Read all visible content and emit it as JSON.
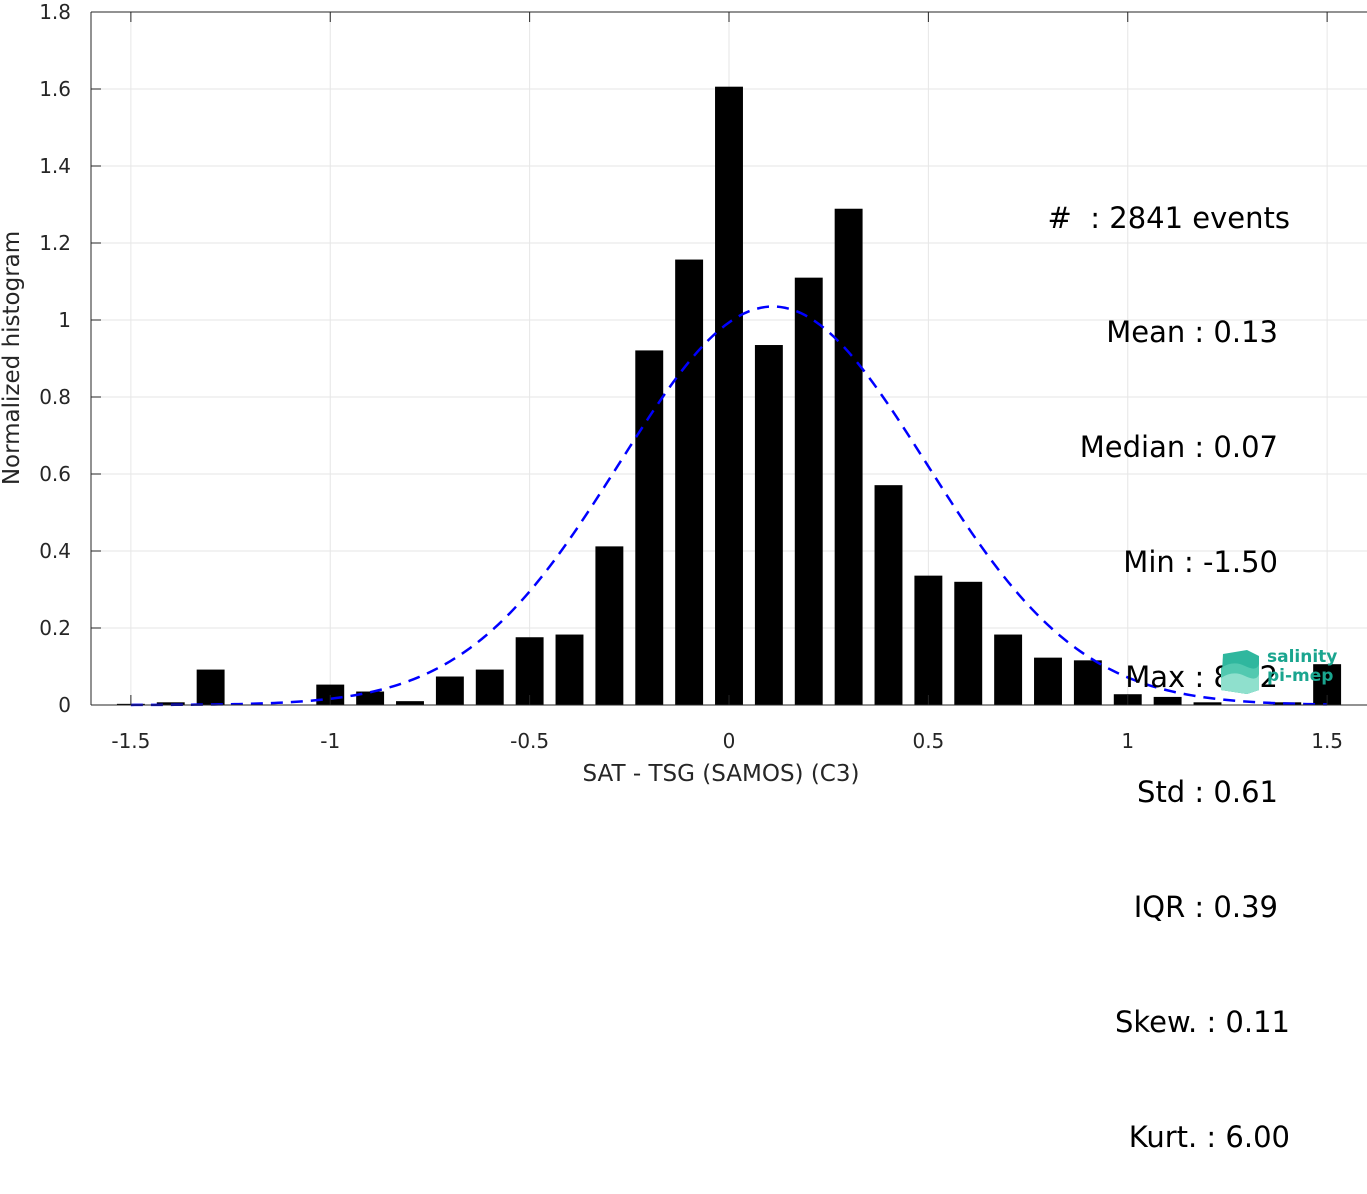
{
  "chart_data": {
    "type": "bar",
    "xlabel": "SAT - TSG (SAMOS) (C3)",
    "ylabel": "Normalized histogram",
    "xlim": [
      -1.6,
      1.6
    ],
    "ylim": [
      0,
      1.8
    ],
    "xticks": [
      -1.5,
      -1,
      -0.5,
      0,
      0.5,
      1,
      1.5
    ],
    "xtick_labels": [
      "-1.5",
      "-1",
      "-0.5",
      "0",
      "0.5",
      "1",
      "1.5"
    ],
    "yticks": [
      0,
      0.2,
      0.4,
      0.6,
      0.8,
      1,
      1.2,
      1.4,
      1.6,
      1.8
    ],
    "ytick_labels": [
      "0",
      "0.2",
      "0.4",
      "0.6",
      "0.8",
      "1",
      "1.2",
      "1.4",
      "1.6",
      "1.8"
    ],
    "grid": true,
    "bar_width": 0.07,
    "bar_color": "#000000",
    "x": [
      -1.5,
      -1.4,
      -1.3,
      -1.2,
      -1.1,
      -1.0,
      -0.9,
      -0.8,
      -0.7,
      -0.6,
      -0.5,
      -0.4,
      -0.3,
      -0.2,
      -0.1,
      0.0,
      0.1,
      0.2,
      0.3,
      0.4,
      0.5,
      0.6,
      0.7,
      0.8,
      0.9,
      1.0,
      1.1,
      1.2,
      1.3,
      1.4,
      1.5
    ],
    "values": [
      0.003,
      0.007,
      0.092,
      0.0,
      0.0,
      0.053,
      0.035,
      0.01,
      0.074,
      0.092,
      0.176,
      0.183,
      0.412,
      0.921,
      1.157,
      1.606,
      0.935,
      1.11,
      1.289,
      0.571,
      0.336,
      0.32,
      0.183,
      0.123,
      0.116,
      0.028,
      0.021,
      0.007,
      0.0,
      0.007,
      0.106
    ],
    "fit_curve": {
      "type": "gaussian",
      "mean": 0.11,
      "std": 0.385,
      "peak": 1.035,
      "color": "#0000ff",
      "style": "dashed"
    }
  },
  "stats": {
    "events": "#  : 2841 events",
    "mean": "Mean : 0.13",
    "median": "Median : 0.07",
    "min": "Min : -1.50",
    "max": "Max : 8.52",
    "std": "Std : 0.61",
    "iqr": "IQR : 0.39",
    "skew": "Skew. : 0.11",
    "kurt": "Kurt. : 6.00"
  },
  "logo": {
    "line1": "salinity",
    "line2": "pi-mep",
    "color": "#1aa58f"
  }
}
